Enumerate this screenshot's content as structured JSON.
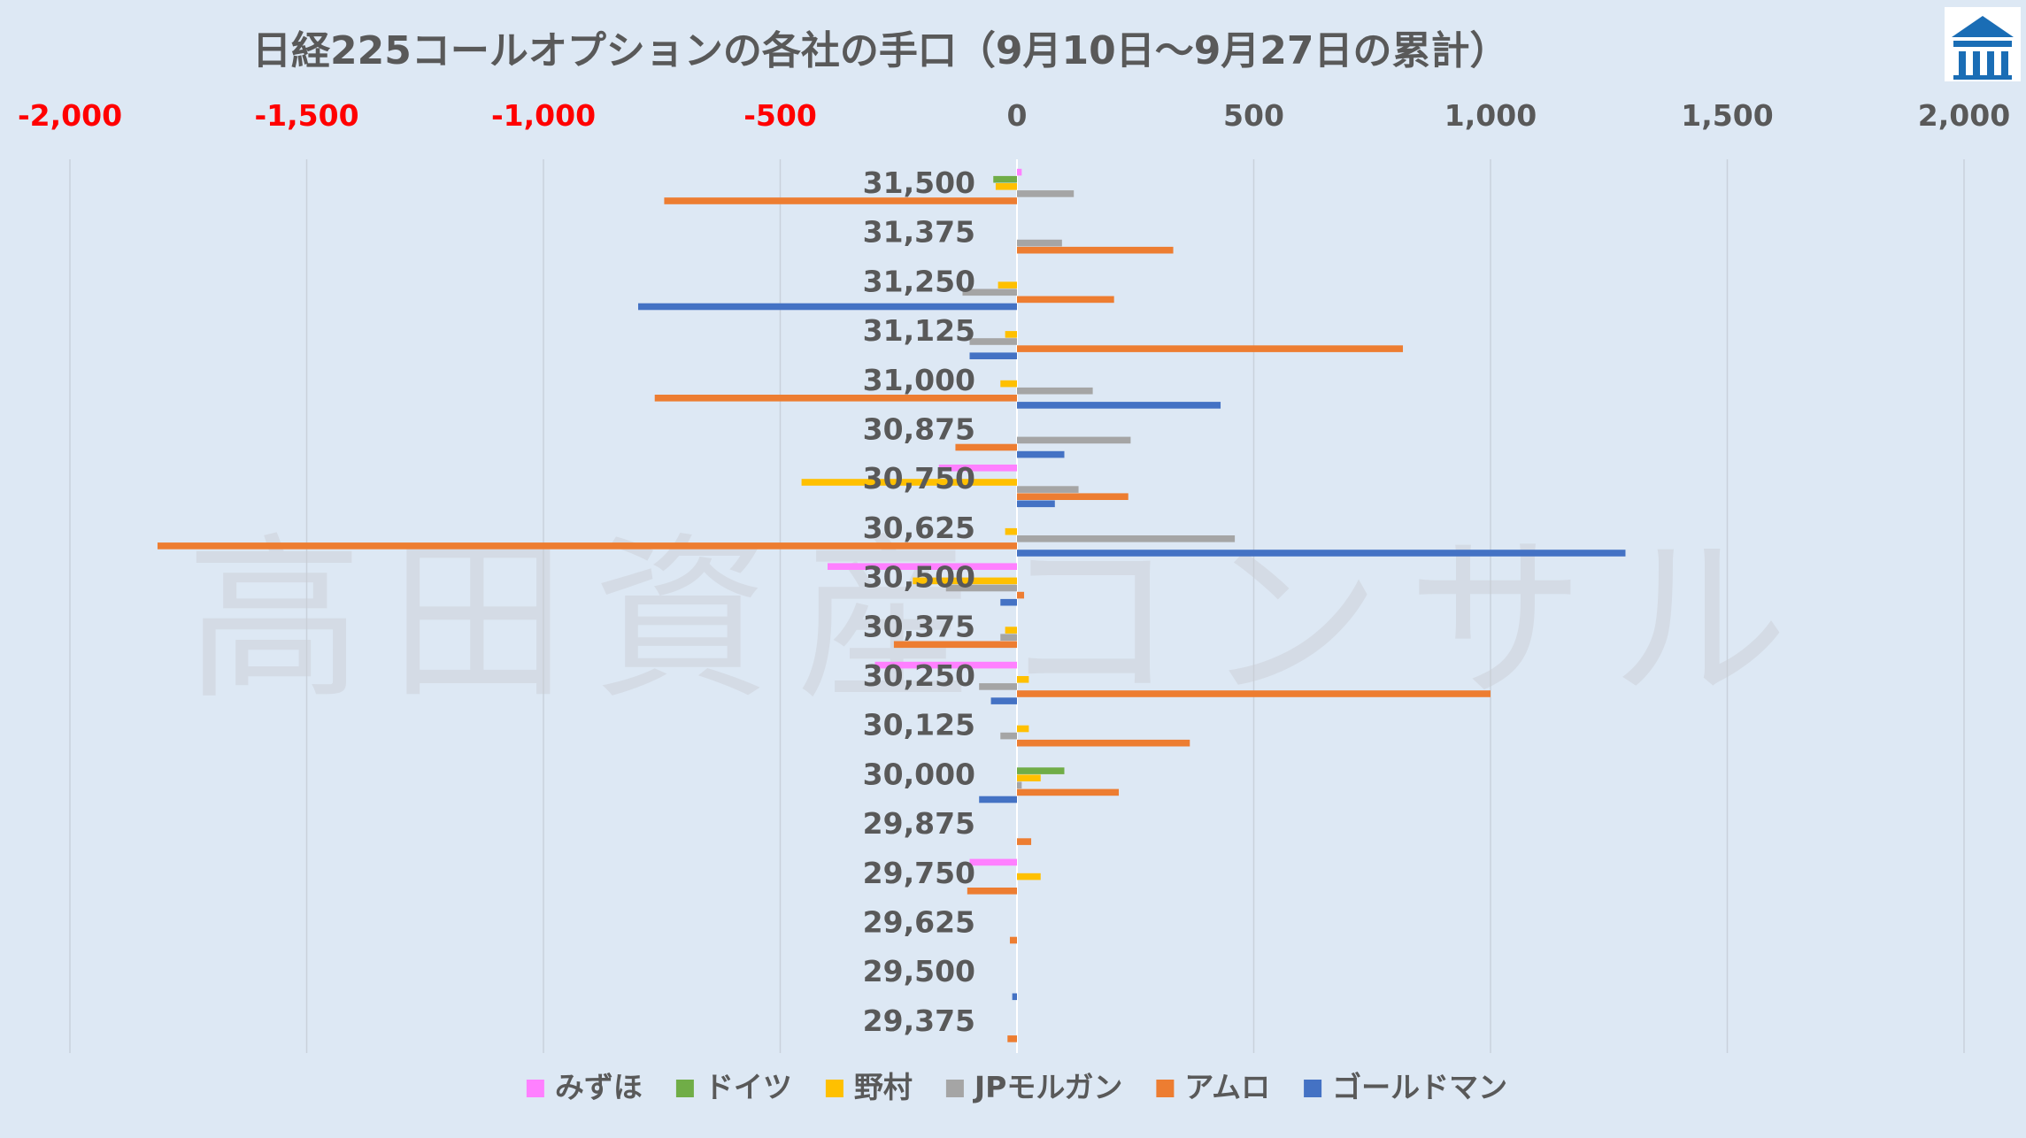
{
  "watermark_text": "高田資産コンサル",
  "logo_icon": "building-logo-icon",
  "chart_data": {
    "type": "bar",
    "orientation": "horizontal",
    "title": "日経225コールオプションの各社の手口（9月10日～9月27日の累計）",
    "xlabel": "",
    "ylabel": "",
    "xlim": [
      -2000,
      2000
    ],
    "x_ticks": [
      -2000,
      -1500,
      -1000,
      -500,
      0,
      500,
      1000,
      1500,
      2000
    ],
    "x_tick_labels": [
      "-2,000",
      "-1,500",
      "-1,000",
      "-500",
      "0",
      "500",
      "1,000",
      "1,500",
      "2,000"
    ],
    "negative_tick_color": "#ff0000",
    "positive_tick_color": "#595959",
    "grid": "vertical",
    "legend_position": "bottom",
    "categories": [
      "31,500",
      "31,375",
      "31,250",
      "31,125",
      "31,000",
      "30,875",
      "30,750",
      "30,625",
      "30,500",
      "30,375",
      "30,250",
      "30,125",
      "30,000",
      "29,875",
      "29,750",
      "29,625",
      "29,500",
      "29,375"
    ],
    "series": [
      {
        "name": "みずほ",
        "color": "#ff80ff",
        "values": [
          10,
          0,
          0,
          0,
          0,
          0,
          -165,
          0,
          -400,
          0,
          -300,
          0,
          0,
          0,
          -100,
          0,
          0,
          0
        ]
      },
      {
        "name": "ドイツ",
        "color": "#70ad47",
        "values": [
          -50,
          0,
          0,
          0,
          0,
          0,
          0,
          0,
          0,
          0,
          0,
          0,
          100,
          0,
          0,
          0,
          0,
          0
        ]
      },
      {
        "name": "野村",
        "color": "#ffc000",
        "values": [
          -45,
          0,
          -40,
          -25,
          -35,
          0,
          -455,
          -25,
          -220,
          -25,
          25,
          25,
          50,
          0,
          50,
          0,
          0,
          0
        ]
      },
      {
        "name": "JPモルガン",
        "color": "#a5a5a5",
        "values": [
          120,
          95,
          -115,
          -100,
          160,
          240,
          130,
          460,
          -150,
          -35,
          -80,
          -35,
          10,
          0,
          0,
          0,
          0,
          0
        ]
      },
      {
        "name": "アムロ",
        "color": "#ed7d31",
        "values": [
          -745,
          330,
          205,
          815,
          -765,
          -130,
          235,
          -1815,
          15,
          -260,
          1000,
          365,
          215,
          30,
          -105,
          -15,
          0,
          -20
        ]
      },
      {
        "name": "ゴールドマン",
        "color": "#4472c4",
        "values": [
          0,
          0,
          -800,
          -100,
          430,
          100,
          80,
          1285,
          -35,
          0,
          -55,
          0,
          -80,
          0,
          0,
          0,
          -10,
          0
        ]
      }
    ]
  }
}
